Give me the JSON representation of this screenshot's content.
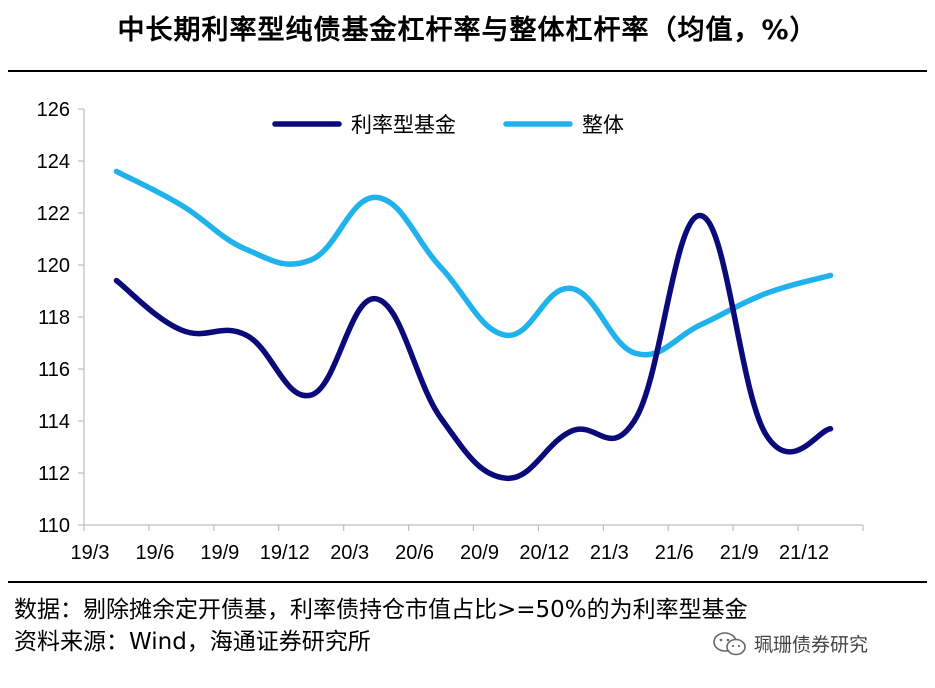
{
  "title": "中长期利率型纯债基金杠杆率与整体杠杆率（均值，%）",
  "footer": {
    "note1": "数据：剔除摊余定开债基，利率债持仓市值占比>=50%的为利率型基金",
    "note2": "资料来源：Wind，海通证券研究所"
  },
  "watermark": {
    "text": "珮珊债券研究",
    "icon": "wechat-icon"
  },
  "colors": {
    "series1": "#0a0a7a",
    "series2": "#1fb2ec",
    "axis": "#bfbfbf"
  },
  "chart_data": {
    "type": "line",
    "title": "中长期利率型纯债基金杠杆率与整体杠杆率（均值，%）",
    "categories": [
      "19/3",
      "19/6",
      "19/9",
      "19/12",
      "20/3",
      "20/6",
      "20/9",
      "20/12",
      "21/3",
      "21/6",
      "21/9",
      "21/12"
    ],
    "ylim": [
      110,
      126
    ],
    "yticks": [
      110,
      112,
      114,
      116,
      118,
      120,
      122,
      124,
      126
    ],
    "xlabel": "",
    "ylabel": "",
    "legend_position": "top",
    "series": [
      {
        "name": "利率型基金",
        "values": [
          119.4,
          117.5,
          117.3,
          115.0,
          118.7,
          114.1,
          111.8,
          113.6,
          114.1,
          121.9,
          113.5,
          113.7
        ]
      },
      {
        "name": "整体",
        "values": [
          123.6,
          122.3,
          120.6,
          120.2,
          122.6,
          119.9,
          117.3,
          119.1,
          116.6,
          117.7,
          118.9,
          119.6
        ]
      }
    ]
  }
}
